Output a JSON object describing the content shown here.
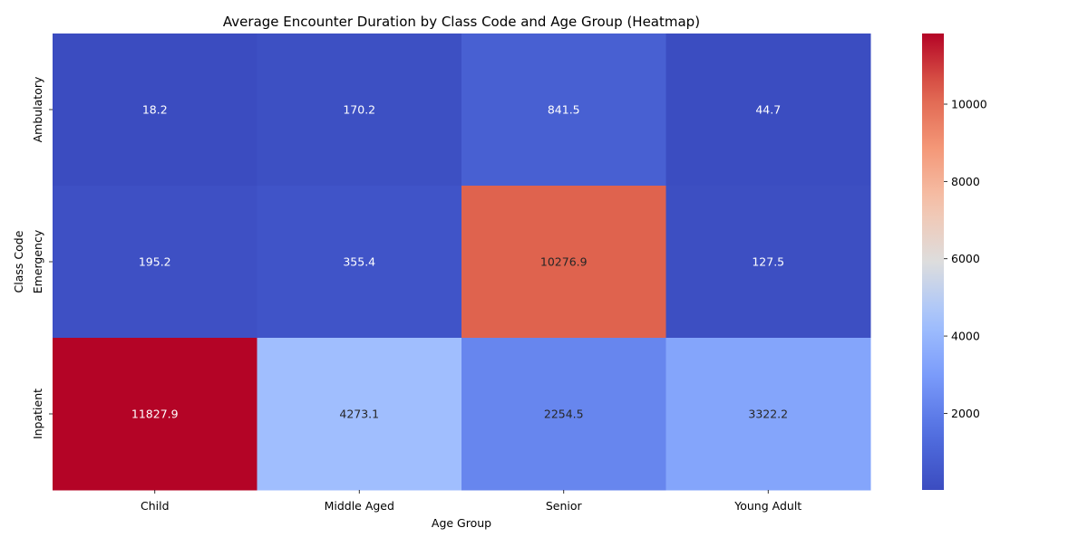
{
  "chart_data": {
    "type": "heatmap",
    "title": "Average Encounter Duration by Class Code and Age Group (Heatmap)",
    "xlabel": "Age Group",
    "ylabel": "Class Code",
    "x_categories": [
      "Child",
      "Middle Aged",
      "Senior",
      "Young Adult"
    ],
    "y_categories": [
      "Ambulatory",
      "Emergency",
      "Inpatient"
    ],
    "values": [
      [
        18.2,
        170.2,
        841.5,
        44.7
      ],
      [
        195.2,
        355.4,
        10276.9,
        127.5
      ],
      [
        11827.9,
        4273.1,
        2254.5,
        3322.2
      ]
    ],
    "value_labels": [
      [
        "18.2",
        "170.2",
        "841.5",
        "44.7"
      ],
      [
        "195.2",
        "355.4",
        "10276.9",
        "127.5"
      ],
      [
        "11827.9",
        "4273.1",
        "2254.5",
        "3322.2"
      ]
    ],
    "colormap": "coolwarm",
    "vmin": 18.2,
    "vmax": 11827.9,
    "colorbar_ticks": [
      2000,
      4000,
      6000,
      8000,
      10000
    ],
    "colorbar_tick_labels": [
      "2000",
      "4000",
      "6000",
      "8000",
      "10000"
    ]
  }
}
